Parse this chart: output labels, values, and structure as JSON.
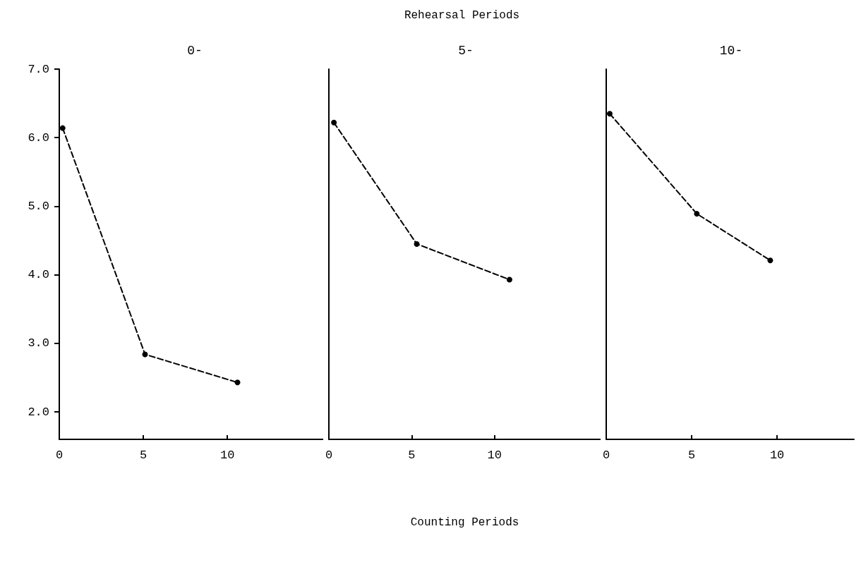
{
  "chart_data": [
    {
      "type": "line",
      "title": "0-",
      "x": [
        0.2,
        5.1,
        10.6
      ],
      "series": [
        {
          "color": "#000000",
          "values": [
            6.14,
            2.84,
            2.43
          ]
        }
      ],
      "xlim": [
        0,
        15.7
      ],
      "xticks": [
        0,
        5,
        10
      ],
      "ylim": [
        1.6,
        7.0
      ],
      "yticks": [
        {
          "value": 2,
          "label": "2.0"
        },
        {
          "value": 3,
          "label": "3.0"
        },
        {
          "value": 4,
          "label": "4.0"
        },
        {
          "value": 5,
          "label": "5.0"
        },
        {
          "value": 6,
          "label": "6.0"
        },
        {
          "value": 7,
          "label": "7.0"
        }
      ],
      "marker": "circle",
      "line_style": "dashed"
    },
    {
      "type": "line",
      "title": "5-",
      "annotations": [
        "Rehearsal Periods"
      ],
      "xlabel": "Counting Periods",
      "x": [
        0.3,
        5.3,
        10.9
      ],
      "series": [
        {
          "color": "#000000",
          "values": [
            6.22,
            4.45,
            3.93
          ]
        }
      ],
      "xlim": [
        0,
        16.4
      ],
      "xticks": [
        0,
        5,
        10
      ],
      "ylim": [
        1.6,
        7.0
      ],
      "tick_labels": "x",
      "marker": "circle",
      "line_style": "dashed"
    },
    {
      "type": "line",
      "title": "10-",
      "x": [
        0.2,
        5.3,
        9.6
      ],
      "series": [
        {
          "color": "#000000",
          "values": [
            6.35,
            4.89,
            4.21
          ]
        }
      ],
      "xlim": [
        0,
        14.5
      ],
      "xticks": [
        0,
        5,
        10
      ],
      "ylim": [
        1.6,
        7.0
      ],
      "tick_labels": "x",
      "marker": "circle",
      "line_style": "dashed"
    }
  ]
}
